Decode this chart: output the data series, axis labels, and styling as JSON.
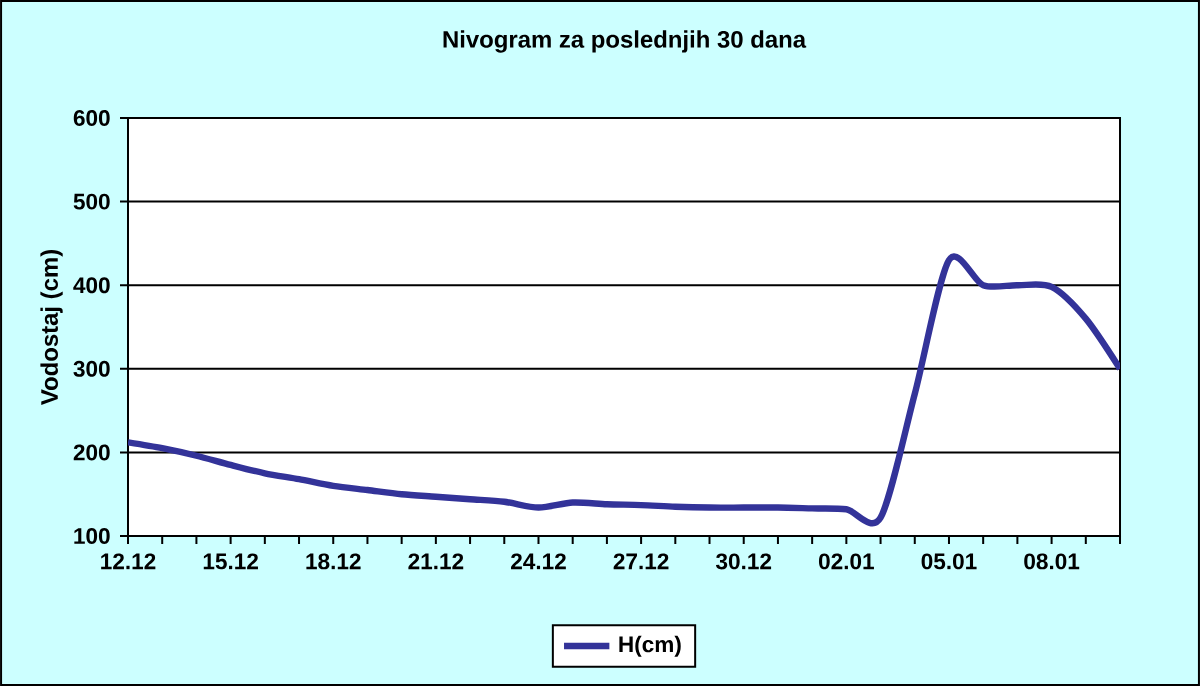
{
  "chart_data": {
    "type": "line",
    "title": "Nivogram za poslednjih 30 dana",
    "ylabel": "Vodostaj (cm)",
    "categories": [
      "12.12",
      null,
      null,
      "15.12",
      null,
      null,
      "18.12",
      null,
      null,
      "21.12",
      null,
      null,
      "24.12",
      null,
      null,
      "27.12",
      null,
      null,
      "30.12",
      null,
      null,
      "02.01",
      null,
      null,
      "05.01",
      null,
      null,
      "08.01",
      null,
      null
    ],
    "series": [
      {
        "name": "H(cm)",
        "color": "#333399",
        "values": [
          212,
          205,
          196,
          185,
          175,
          168,
          160,
          155,
          150,
          147,
          144,
          141,
          134,
          140,
          138,
          137,
          135,
          134,
          134,
          134,
          133,
          132,
          122,
          270,
          430,
          400,
          400,
          398,
          360,
          300
        ]
      }
    ],
    "ylim": [
      100,
      600
    ],
    "yticks": [
      100,
      200,
      300,
      400,
      500,
      600
    ],
    "grid": "y",
    "legend": "bottom",
    "marker": "none",
    "line_style": "solid"
  }
}
